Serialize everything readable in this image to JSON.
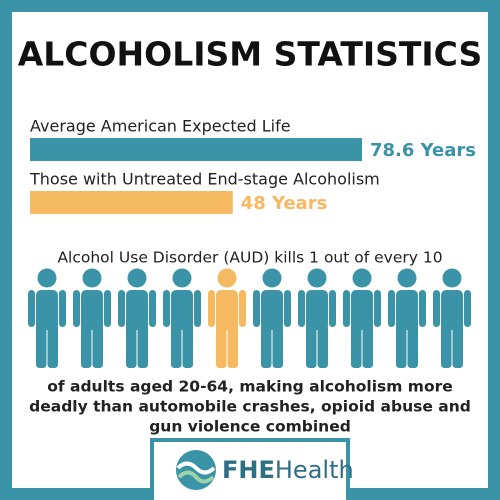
{
  "chart_data": {
    "type": "bar",
    "orientation": "horizontal",
    "title": "ALCOHOLISM STATISTICS",
    "categories": [
      "Average American Expected Life",
      "Those with Untreated End-stage Alcoholism"
    ],
    "values": [
      78.6,
      48
    ],
    "value_labels": [
      "78.6 Years",
      "48 Years"
    ],
    "colors": [
      "#3a93a6",
      "#f5b961"
    ]
  },
  "statement": "Alcohol Use Disorder (AUD) kills 1 out of every 10",
  "caption": [
    "of adults aged 20-64, making alcoholism more",
    "deadly than automobile crashes, opioid abuse and",
    "gun violence combined"
  ],
  "logo": [
    "FHE",
    "Health"
  ]
}
